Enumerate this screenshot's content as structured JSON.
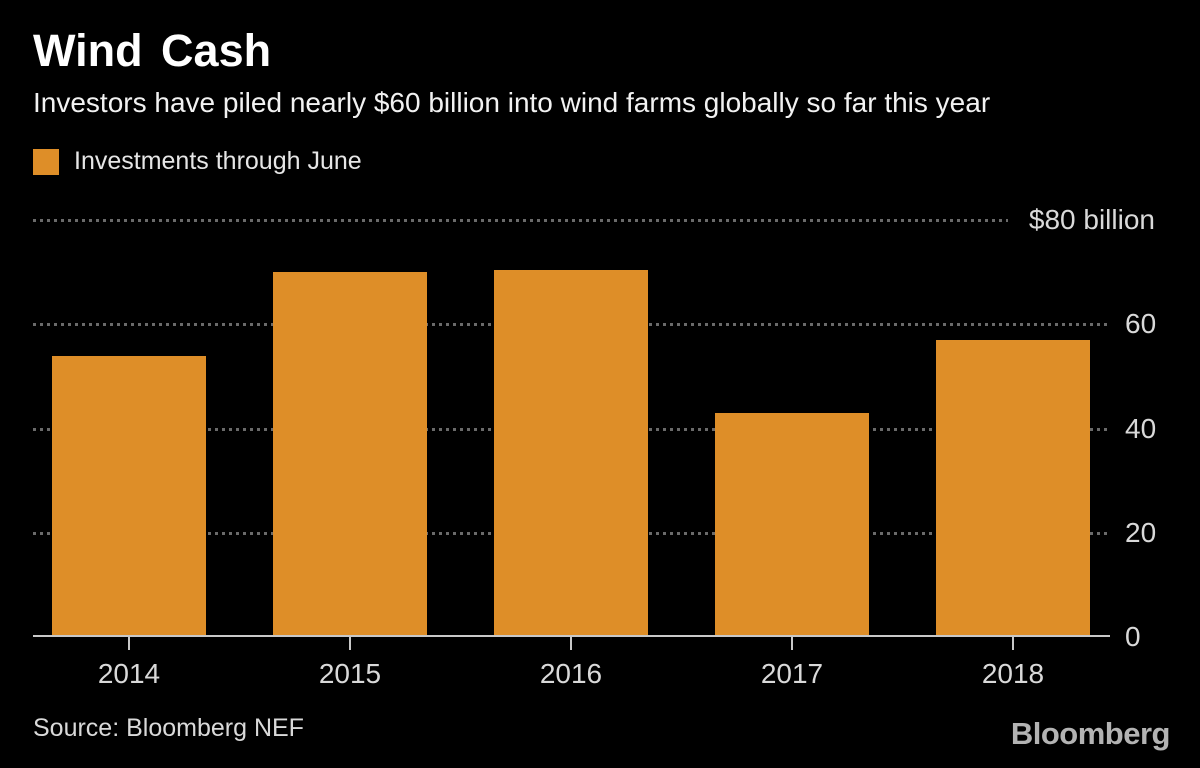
{
  "header": {
    "title": "Wind Cash",
    "subtitle": "Investors have piled nearly $60 billion into wind farms globally so far this year"
  },
  "legend": {
    "label": "Investments through June",
    "swatch_color": "#DE8E28"
  },
  "chart_data": {
    "type": "bar",
    "title": "Wind Cash",
    "subtitle": "Investors have piled nearly $60 billion into wind farms globally so far this year",
    "categories": [
      "2014",
      "2015",
      "2016",
      "2017",
      "2018"
    ],
    "series": [
      {
        "name": "Investments through June",
        "color": "#DE8E28",
        "values": [
          54,
          70,
          70.5,
          43,
          57
        ]
      }
    ],
    "unit": "$ billion",
    "ylabel": "",
    "xlabel": "",
    "ylim": [
      0,
      80
    ],
    "yticks": [
      {
        "value": 80,
        "label": "$80 billion"
      },
      {
        "value": 60,
        "label": "60"
      },
      {
        "value": 40,
        "label": "40"
      },
      {
        "value": 20,
        "label": "20"
      },
      {
        "value": 0,
        "label": "0"
      }
    ],
    "grid": "horizontal dotted",
    "ytick_side": "right",
    "legend_position": "top-left",
    "background": "#000000"
  },
  "footer": {
    "source": "Source: Bloomberg NEF",
    "brand": "Bloomberg"
  },
  "colors": {
    "background": "#000000",
    "bar": "#DE8E28",
    "grid": "#6A6A6A",
    "axis_line": "#C8C8C8",
    "tick_label": "#D9D9D9",
    "title": "#FFFFFF",
    "subtitle": "#F2F2F2",
    "brand": "#B3B3B3"
  }
}
